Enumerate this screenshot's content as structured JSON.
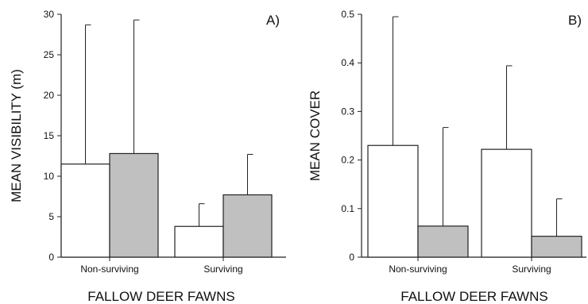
{
  "chart_data": [
    {
      "type": "bar",
      "panel_label": "A)",
      "categories": [
        "Non-surviving",
        "Surviving"
      ],
      "series": [
        {
          "values": [
            11.5,
            3.8
          ],
          "errors": [
            17.2,
            2.8
          ],
          "color": "#ffffff"
        },
        {
          "values": [
            12.8,
            7.7
          ],
          "errors": [
            16.5,
            5.0
          ],
          "color": "#c0c0c0"
        }
      ],
      "xlabel": "FALLOW DEER FAWNS",
      "ylabel": "MEAN VISIBILITY (m)",
      "ylim": [
        0,
        30
      ],
      "yticks": [
        "0",
        "5",
        "10",
        "15",
        "20",
        "25",
        "30"
      ],
      "grid": false
    },
    {
      "type": "bar",
      "panel_label": "B)",
      "categories": [
        "Non-surviving",
        "Surviving"
      ],
      "series": [
        {
          "values": [
            0.23,
            0.222
          ],
          "errors": [
            0.265,
            0.172
          ],
          "color": "#ffffff"
        },
        {
          "values": [
            0.064,
            0.043
          ],
          "errors": [
            0.203,
            0.077
          ],
          "color": "#c0c0c0"
        }
      ],
      "xlabel": "FALLOW DEER FAWNS",
      "ylabel": "MEAN COVER",
      "ylim": [
        0,
        0.5
      ],
      "yticks": [
        "0",
        "0.1",
        "0.2",
        "0.3",
        "0.4",
        "0.5"
      ],
      "grid": false
    }
  ]
}
